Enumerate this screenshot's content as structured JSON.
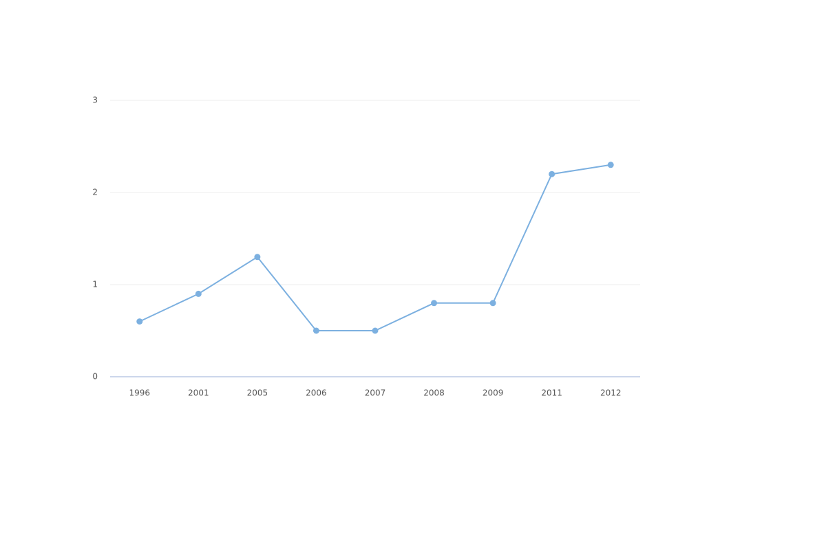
{
  "chart_data": {
    "type": "line",
    "categories": [
      "1996",
      "2001",
      "2005",
      "2006",
      "2007",
      "2008",
      "2009",
      "2011",
      "2012"
    ],
    "values": [
      0.6,
      0.9,
      1.3,
      0.5,
      0.5,
      0.8,
      0.8,
      2.2,
      2.3
    ],
    "color": "#7cb0e0",
    "ylim": [
      0,
      3
    ],
    "yticks": [
      0,
      1,
      2,
      3
    ],
    "grid": true
  }
}
